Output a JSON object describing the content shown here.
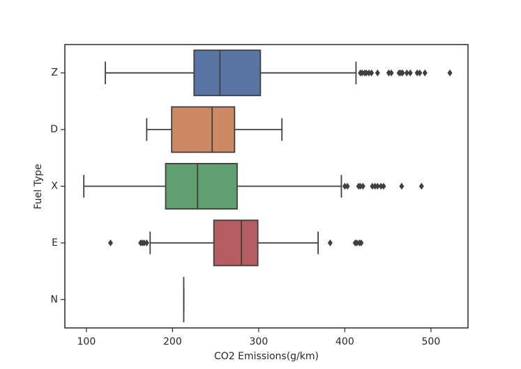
{
  "chart_data": {
    "type": "box",
    "orientation": "horizontal",
    "x_label": "CO2 Emissions(g/km)",
    "y_label": "Fuel Type",
    "categories": [
      "Z",
      "D",
      "X",
      "E",
      "N"
    ],
    "series": [
      {
        "name": "Z",
        "color": "#5975a4",
        "low": 122,
        "q1": 225,
        "median": 255,
        "q3": 302,
        "high": 413,
        "outliers": [
          418,
          420,
          423,
          425,
          428,
          431,
          438,
          451,
          454,
          463,
          465,
          467,
          472,
          476,
          484,
          487,
          493,
          522
        ]
      },
      {
        "name": "D",
        "color": "#cc8963",
        "low": 170,
        "q1": 199,
        "median": 246,
        "q3": 272,
        "high": 327,
        "outliers": []
      },
      {
        "name": "X",
        "color": "#5f9e6e",
        "low": 97,
        "q1": 192,
        "median": 229,
        "q3": 275,
        "high": 396,
        "outliers": [
          400,
          403,
          416,
          418,
          421,
          432,
          435,
          438,
          442,
          445,
          466,
          489
        ]
      },
      {
        "name": "E",
        "color": "#b55d60",
        "low": 174,
        "q1": 248,
        "median": 280,
        "q3": 299,
        "high": 369,
        "outliers": [
          128,
          163,
          165,
          167,
          170,
          383,
          412,
          414,
          417,
          419
        ]
      },
      {
        "name": "N",
        "color": "#857aab",
        "low": 213,
        "q1": 213,
        "median": 213,
        "q3": 213,
        "high": 213,
        "outliers": []
      }
    ],
    "xlim": [
      75,
      543
    ],
    "xticks": [
      100,
      200,
      300,
      400,
      500
    ]
  }
}
